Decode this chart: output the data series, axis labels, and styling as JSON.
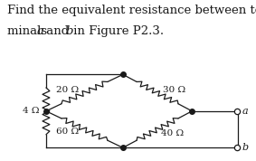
{
  "title_line1": "Find the equivalent resistance between ter-",
  "title_line2_pre": "minals ",
  "title_line2_a": "a",
  "title_line2_and": " and ",
  "title_line2_b": "b",
  "title_line2_post": " in Figure P2.3.",
  "bg_color": "#ffffff",
  "line_color": "#1a1a1a",
  "label_4ohm": "4 Ω",
  "label_20ohm": "20 Ω",
  "label_30ohm": "30 Ω",
  "label_60ohm": "60 Ω",
  "label_40ohm": "40 Ω",
  "label_a": "a",
  "label_b": "b",
  "font_size_title": 9.5,
  "font_size_labels": 7.5
}
